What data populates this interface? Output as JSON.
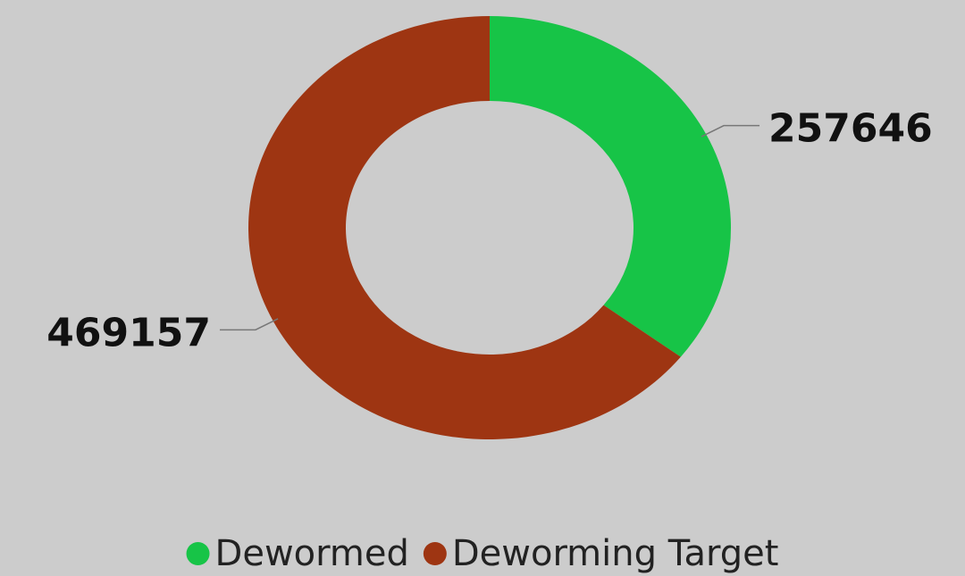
{
  "chart_data": {
    "type": "pie",
    "donut": true,
    "categories": [
      "Dewormed",
      "Deworming Target"
    ],
    "values": [
      257646,
      469157
    ],
    "colors": [
      "#17c447",
      "#9e3512"
    ]
  }
}
